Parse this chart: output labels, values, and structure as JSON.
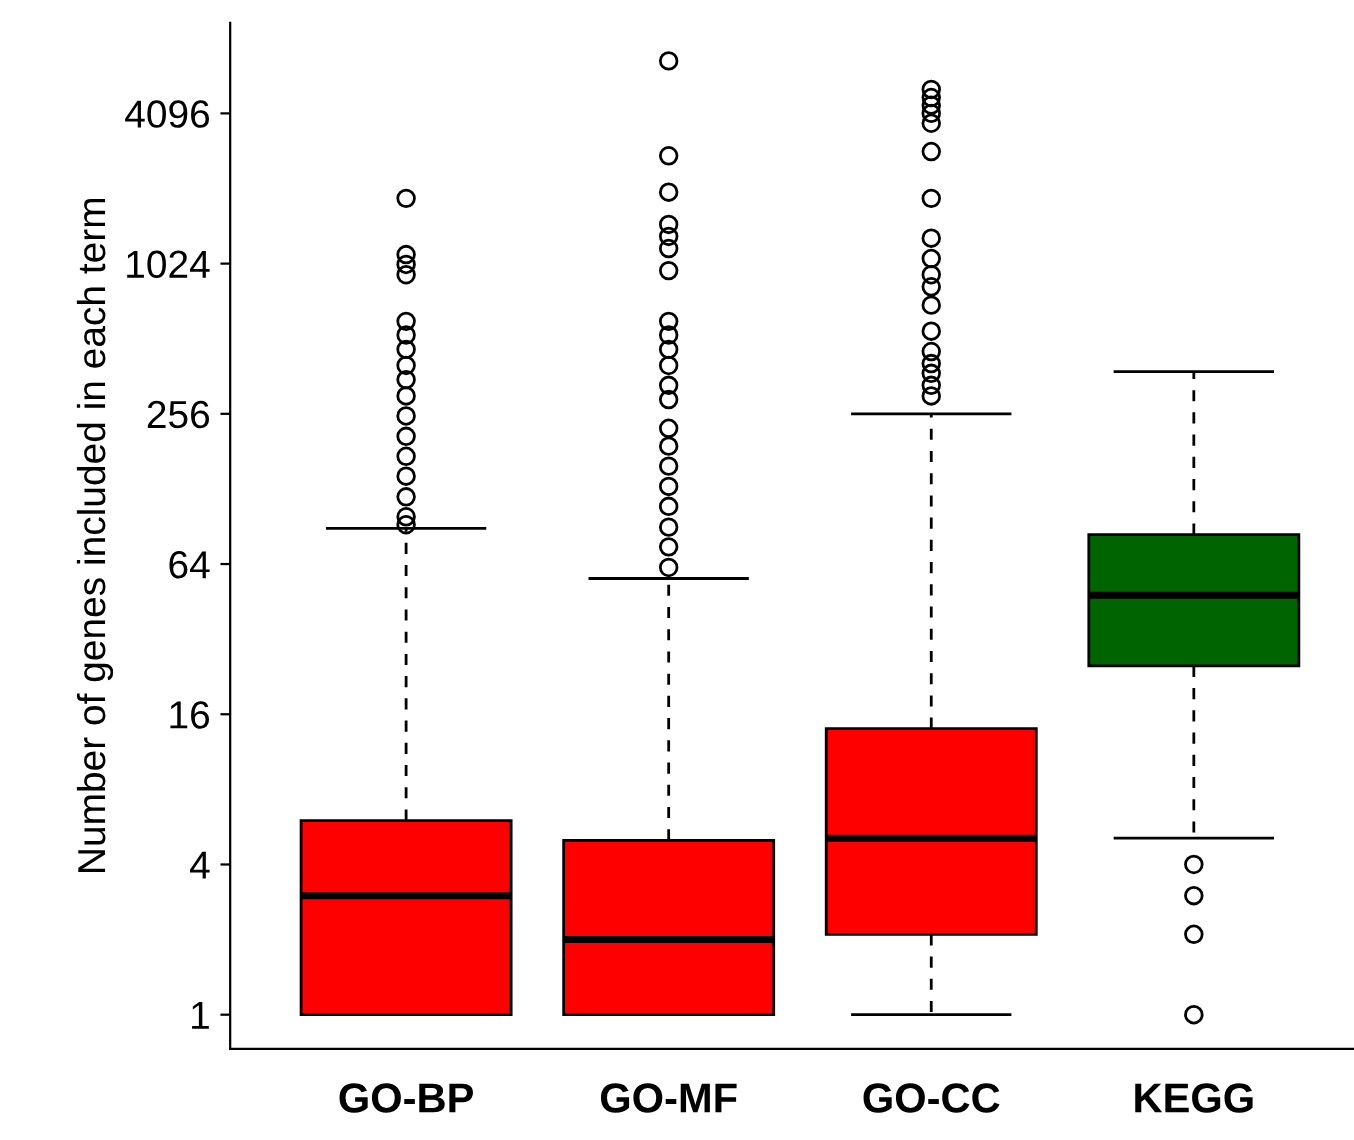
{
  "chart_data": {
    "type": "box",
    "ylabel": "Number of genes included in each term",
    "categories": [
      "GO-BP",
      "GO-MF",
      "GO-CC",
      "KEGG"
    ],
    "colors": [
      "#ff0000",
      "#ff0000",
      "#ff0000",
      "#006400"
    ],
    "log": "y",
    "ylim": [
      0.73,
      9450
    ],
    "yticks": [
      1,
      4,
      16,
      64,
      256,
      1024,
      4096
    ],
    "grid": false,
    "marker": "circle",
    "line_style": "dashed",
    "boxes": [
      {
        "low": 1,
        "q1": 1,
        "median": 3,
        "q3": 6,
        "high": 89,
        "outliers": [
          1870,
          1113,
          1016,
          924,
          601,
          530,
          464,
          400,
          351,
          302,
          251,
          208,
          173,
          144,
          119,
          99,
          92
        ]
      },
      {
        "low": 1,
        "q1": 1,
        "median": 2,
        "q3": 5,
        "high": 56,
        "outliers": [
          6650,
          2770,
          1980,
          1470,
          1316,
          1177,
          960,
          601,
          530,
          464,
          400,
          333,
          292,
          224,
          190,
          158,
          131,
          109,
          90,
          75,
          62
        ]
      },
      {
        "low": 1,
        "q1": 2.1,
        "median": 5.1,
        "q3": 14,
        "high": 256,
        "outliers": [
          5110,
          4740,
          4420,
          4096,
          3740,
          2880,
          1870,
          1295,
          1073,
          924,
          827,
          698,
          549,
          455,
          407,
          372,
          333,
          302
        ]
      },
      {
        "low": 5.1,
        "q1": 25,
        "median": 48,
        "q3": 84,
        "high": 378,
        "outliers": [
          4,
          3,
          2.1,
          1
        ]
      }
    ]
  }
}
